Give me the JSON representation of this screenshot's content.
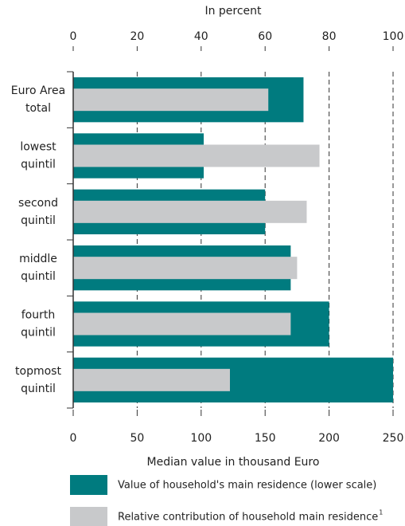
{
  "chart_data": {
    "type": "bar",
    "orientation": "horizontal",
    "x_label": "Median value in thousand Euro",
    "x2_label": "In percent",
    "categories": [
      "Euro Area\ntotal",
      "lowest\nquintil",
      "second\nquintil",
      "middle\nquintil",
      "fourth\nquintil",
      "topmost\nquintil"
    ],
    "series": [
      {
        "name": "Value of household's main residence (lower scale)",
        "color": "#007b7f",
        "axis": "x",
        "values": [
          180,
          102,
          150,
          170,
          200,
          250
        ]
      },
      {
        "name": "Relative contribution of household main residence",
        "footnote": "1",
        "color": "#c8c9cb",
        "axis": "x2",
        "values": [
          61,
          77,
          73,
          70,
          68,
          49
        ]
      }
    ],
    "xlim": [
      0,
      250
    ],
    "xticks": [
      0,
      50,
      100,
      150,
      200,
      250
    ],
    "x2lim": [
      0,
      100
    ],
    "x2ticks": [
      0,
      20,
      40,
      60,
      80,
      100
    ],
    "grid": true
  }
}
